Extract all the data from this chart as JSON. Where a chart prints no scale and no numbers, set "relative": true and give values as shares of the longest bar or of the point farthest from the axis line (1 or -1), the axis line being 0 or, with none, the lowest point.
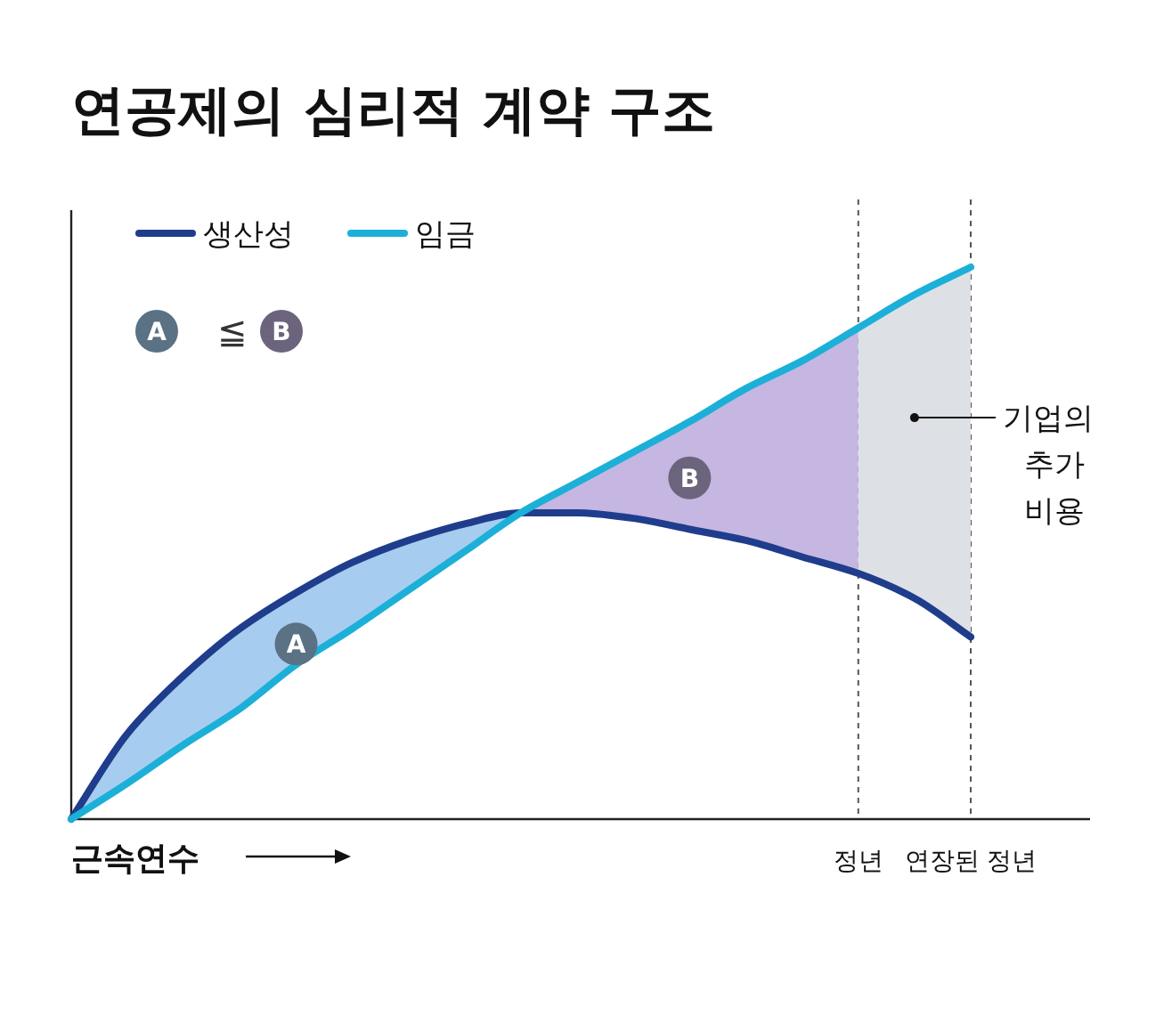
{
  "chart_data": {
    "type": "line",
    "title": "연공제의 심리적 계약 구조",
    "xlabel": "근속연수",
    "relative": true,
    "legend": "top left",
    "categories": [
      null,
      null,
      null,
      null,
      null,
      null,
      null,
      null,
      null,
      null,
      null,
      null,
      null,
      null,
      "정년",
      null,
      "연장된 정년"
    ],
    "series": [
      {
        "name": "생산성",
        "color": "#1f3d8c",
        "values": [
          0,
          0.155,
          0.26,
          0.345,
          0.41,
          0.465,
          0.505,
          0.535,
          0.555,
          0.555,
          0.545,
          0.525,
          0.505,
          0.475,
          0.445,
          0.4,
          0.33
        ]
      },
      {
        "name": "임금",
        "color": "#1cb0d8",
        "values": [
          0,
          0.065,
          0.135,
          0.2,
          0.28,
          0.345,
          0.415,
          0.485,
          0.555,
          0.61,
          0.665,
          0.72,
          0.78,
          0.83,
          0.89,
          0.95,
          1
        ]
      },
      {
        "name": "A",
        "type": "area",
        "color": "#a6cdf0",
        "values": [
          0,
          0.155,
          0.26,
          0.345,
          0.41,
          0.465,
          0.505,
          0.535,
          0.555,
          null,
          null,
          null,
          null,
          null,
          null,
          null,
          null
        ]
      },
      {
        "name": "B",
        "type": "area",
        "color": "#c5b6e2",
        "values": [
          null,
          null,
          null,
          null,
          null,
          null,
          null,
          null,
          0.555,
          0.61,
          0.665,
          0.72,
          0.78,
          0.83,
          0.89,
          null,
          null
        ]
      },
      {
        "name": "기업의\n추가\n비용",
        "type": "area",
        "color": "#dde1e6",
        "values": [
          null,
          null,
          null,
          null,
          null,
          null,
          null,
          null,
          null,
          null,
          null,
          null,
          null,
          null,
          0.89,
          0.95,
          1
        ]
      }
    ],
    "ref_lines": [
      {
        "axis": "x",
        "value": "정년",
        "line_style": "dashed",
        "color": "#555555"
      },
      {
        "axis": "x",
        "value": "연장된 정년",
        "line_style": "dashed",
        "color": "#555555"
      }
    ],
    "annotations": [
      "A ≦ B"
    ]
  }
}
